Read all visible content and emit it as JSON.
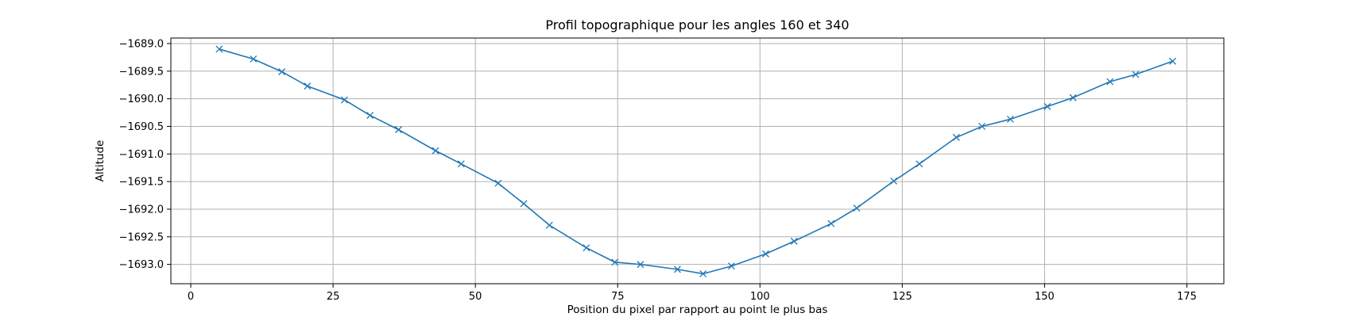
{
  "chart_data": {
    "type": "line",
    "title": "Profil topographique pour les angles 160 et 340",
    "xlabel": "Position du pixel par rapport au point le plus bas",
    "ylabel": "Altitude",
    "xlim": [
      -3.5,
      181.5
    ],
    "ylim": [
      -1693.35,
      -1688.9
    ],
    "x_ticks": [
      0,
      25,
      50,
      75,
      100,
      125,
      150,
      175
    ],
    "y_ticks": [
      -1689.0,
      -1689.5,
      -1690.0,
      -1690.5,
      -1691.0,
      -1691.5,
      -1692.0,
      -1692.5,
      -1693.0
    ],
    "x_tick_labels": [
      "0",
      "25",
      "50",
      "75",
      "100",
      "125",
      "150",
      "175"
    ],
    "y_tick_labels": [
      "−1689.0",
      "−1689.5",
      "−1690.0",
      "−1690.5",
      "−1691.0",
      "−1691.5",
      "−1692.0",
      "−1692.5",
      "−1693.0"
    ],
    "grid": true,
    "marker": "x",
    "series": [
      {
        "color": "#1f77b4",
        "x": [
          5,
          11,
          16,
          20.5,
          27,
          31.5,
          36.5,
          43,
          47.5,
          54,
          58.5,
          63,
          69.5,
          74.5,
          79,
          85.5,
          90,
          95,
          101,
          106,
          112.5,
          117,
          123.5,
          128,
          134.5,
          139,
          144,
          150.5,
          155,
          161.5,
          166,
          172.5
        ],
        "y": [
          -1689.1,
          -1689.28,
          -1689.51,
          -1689.77,
          -1690.02,
          -1690.3,
          -1690.56,
          -1690.94,
          -1691.18,
          -1691.53,
          -1691.9,
          -1692.29,
          -1692.7,
          -1692.96,
          -1693.0,
          -1693.09,
          -1693.17,
          -1693.03,
          -1692.81,
          -1692.58,
          -1692.26,
          -1691.98,
          -1691.49,
          -1691.18,
          -1690.7,
          -1690.5,
          -1690.37,
          -1690.14,
          -1689.98,
          -1689.69,
          -1689.56,
          -1689.32
        ]
      }
    ]
  }
}
